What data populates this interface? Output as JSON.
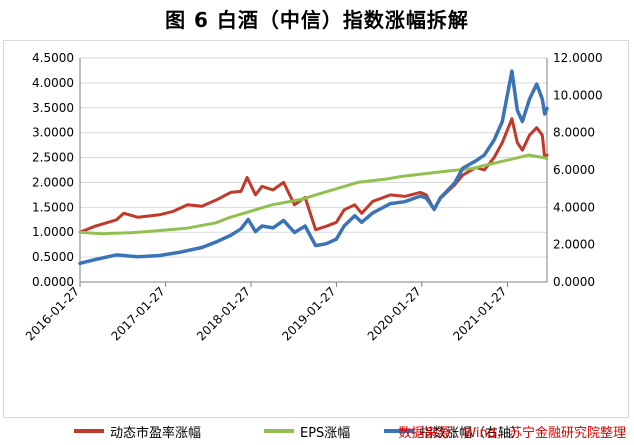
{
  "figure": {
    "title": "图 6  白酒（中信）指数涨幅拆解",
    "source": "数据来源：Wind，苏宁金融研究院整理"
  },
  "chart_data": {
    "type": "line",
    "title": "图 6  白酒（中信）指数涨幅拆解",
    "xlabel": "",
    "ylabel": "",
    "x_tick_labels": [
      "2016-01-27",
      "2017-01-27",
      "2018-01-27",
      "2019-01-27",
      "2020-01-27",
      "2021-01-27"
    ],
    "x_range": [
      "2016-01-27",
      "2021-07-15"
    ],
    "y_left": {
      "ylim": [
        0,
        4.5
      ],
      "tick_labels": [
        "0.0000",
        "0.5000",
        "1.0000",
        "1.5000",
        "2.0000",
        "2.5000",
        "3.0000",
        "3.5000",
        "4.0000",
        "4.5000"
      ]
    },
    "y_right": {
      "ylim": [
        0,
        12
      ],
      "tick_labels": [
        "0.0000",
        "2.0000",
        "4.0000",
        "6.0000",
        "8.0000",
        "10.0000",
        "12.0000"
      ]
    },
    "grid": "horizontal",
    "legend_position": "bottom",
    "series": [
      {
        "name": "动态市盈率涨幅",
        "axis": "left",
        "color": "#c0392b",
        "points": [
          [
            "2016-01-27",
            1.0
          ],
          [
            "2016-04-01",
            1.12
          ],
          [
            "2016-07-01",
            1.25
          ],
          [
            "2016-08-01",
            1.38
          ],
          [
            "2016-10-01",
            1.3
          ],
          [
            "2017-01-01",
            1.35
          ],
          [
            "2017-03-01",
            1.42
          ],
          [
            "2017-05-01",
            1.55
          ],
          [
            "2017-07-01",
            1.52
          ],
          [
            "2017-09-01",
            1.65
          ],
          [
            "2017-11-01",
            1.8
          ],
          [
            "2017-12-15",
            1.82
          ],
          [
            "2018-01-10",
            2.1
          ],
          [
            "2018-02-15",
            1.75
          ],
          [
            "2018-03-15",
            1.92
          ],
          [
            "2018-05-01",
            1.85
          ],
          [
            "2018-06-15",
            2.0
          ],
          [
            "2018-08-01",
            1.55
          ],
          [
            "2018-09-15",
            1.7
          ],
          [
            "2018-10-30",
            1.05
          ],
          [
            "2018-12-15",
            1.12
          ],
          [
            "2019-01-27",
            1.2
          ],
          [
            "2019-03-01",
            1.45
          ],
          [
            "2019-04-15",
            1.55
          ],
          [
            "2019-05-15",
            1.38
          ],
          [
            "2019-07-01",
            1.62
          ],
          [
            "2019-09-15",
            1.75
          ],
          [
            "2019-11-15",
            1.72
          ],
          [
            "2020-01-20",
            1.8
          ],
          [
            "2020-02-15",
            1.75
          ],
          [
            "2020-03-20",
            1.45
          ],
          [
            "2020-04-15",
            1.68
          ],
          [
            "2020-06-15",
            1.95
          ],
          [
            "2020-07-20",
            2.15
          ],
          [
            "2020-09-15",
            2.3
          ],
          [
            "2020-10-20",
            2.25
          ],
          [
            "2020-12-01",
            2.5
          ],
          [
            "2021-01-05",
            2.8
          ],
          [
            "2021-02-15",
            3.28
          ],
          [
            "2021-03-10",
            2.8
          ],
          [
            "2021-04-01",
            2.65
          ],
          [
            "2021-05-01",
            2.95
          ],
          [
            "2021-06-01",
            3.1
          ],
          [
            "2021-06-25",
            2.95
          ],
          [
            "2021-07-05",
            2.5
          ],
          [
            "2021-07-15",
            2.55
          ]
        ]
      },
      {
        "name": "EPS涨幅",
        "axis": "left",
        "color": "#92c050",
        "points": [
          [
            "2016-01-27",
            1.0
          ],
          [
            "2016-04-28",
            0.97
          ],
          [
            "2016-08-30",
            0.99
          ],
          [
            "2016-10-30",
            1.01
          ],
          [
            "2017-04-28",
            1.08
          ],
          [
            "2017-08-30",
            1.19
          ],
          [
            "2017-10-30",
            1.3
          ],
          [
            "2018-04-28",
            1.55
          ],
          [
            "2018-08-30",
            1.66
          ],
          [
            "2018-10-30",
            1.75
          ],
          [
            "2019-04-28",
            2.0
          ],
          [
            "2019-08-30",
            2.07
          ],
          [
            "2019-10-30",
            2.12
          ],
          [
            "2020-04-28",
            2.22
          ],
          [
            "2020-08-30",
            2.28
          ],
          [
            "2020-10-30",
            2.35
          ],
          [
            "2021-04-28",
            2.55
          ],
          [
            "2021-07-01",
            2.5
          ],
          [
            "2021-07-15",
            2.48
          ]
        ]
      },
      {
        "name": "指数涨幅（右轴）",
        "axis": "right",
        "color": "#3a73b8",
        "points": [
          [
            "2016-01-27",
            1.0
          ],
          [
            "2016-04-01",
            1.2
          ],
          [
            "2016-07-01",
            1.45
          ],
          [
            "2016-10-01",
            1.35
          ],
          [
            "2017-01-01",
            1.42
          ],
          [
            "2017-04-01",
            1.6
          ],
          [
            "2017-07-01",
            1.85
          ],
          [
            "2017-09-01",
            2.15
          ],
          [
            "2017-11-01",
            2.5
          ],
          [
            "2017-12-15",
            2.85
          ],
          [
            "2018-01-15",
            3.35
          ],
          [
            "2018-02-15",
            2.7
          ],
          [
            "2018-03-15",
            3.0
          ],
          [
            "2018-05-01",
            2.9
          ],
          [
            "2018-06-15",
            3.3
          ],
          [
            "2018-08-01",
            2.65
          ],
          [
            "2018-09-15",
            3.0
          ],
          [
            "2018-10-30",
            1.95
          ],
          [
            "2018-12-15",
            2.05
          ],
          [
            "2019-01-27",
            2.3
          ],
          [
            "2019-03-01",
            3.0
          ],
          [
            "2019-04-15",
            3.55
          ],
          [
            "2019-05-15",
            3.2
          ],
          [
            "2019-07-01",
            3.7
          ],
          [
            "2019-09-15",
            4.2
          ],
          [
            "2019-11-15",
            4.3
          ],
          [
            "2020-01-20",
            4.6
          ],
          [
            "2020-02-15",
            4.5
          ],
          [
            "2020-03-20",
            3.9
          ],
          [
            "2020-04-15",
            4.5
          ],
          [
            "2020-06-15",
            5.3
          ],
          [
            "2020-07-20",
            6.1
          ],
          [
            "2020-09-15",
            6.5
          ],
          [
            "2020-10-20",
            6.8
          ],
          [
            "2020-12-01",
            7.6
          ],
          [
            "2021-01-05",
            8.6
          ],
          [
            "2021-02-15",
            11.3
          ],
          [
            "2021-03-10",
            9.2
          ],
          [
            "2021-04-01",
            8.6
          ],
          [
            "2021-05-01",
            9.8
          ],
          [
            "2021-06-01",
            10.6
          ],
          [
            "2021-06-25",
            9.8
          ],
          [
            "2021-07-05",
            9.0
          ],
          [
            "2021-07-15",
            9.3
          ]
        ]
      }
    ]
  }
}
